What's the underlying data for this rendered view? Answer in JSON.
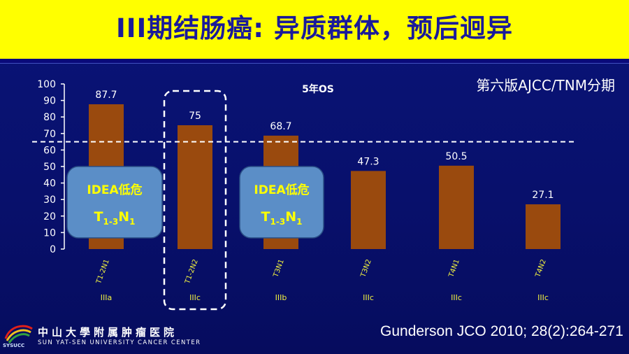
{
  "slide": {
    "title": "III期结肠癌: 异质群体，预后迥异",
    "edition_note": "第六版AJCC/TNM分期",
    "reference": "Gunderson JCO 2010; 28(2):264-271"
  },
  "callouts": [
    {
      "line1": "IDEA低危",
      "base": "T",
      "sub": "1-3",
      "mid": "N",
      "sub2": "1"
    },
    {
      "line1": "IDEA低危",
      "base": "T",
      "sub": "1-3",
      "mid": "N",
      "sub2": "1"
    }
  ],
  "logo": {
    "name_cn": "中山大學附属肿瘤医院",
    "name_en": "SUN YAT-SEN UNIVERSITY CANCER CENTER",
    "abbr": "SYSUCC"
  },
  "colors": {
    "background": "#08106a",
    "header": "#ffff00",
    "bar": "#9a4a0e",
    "callout": "#5b8ec7",
    "title_text": "#1a1a9a"
  },
  "chart_data": {
    "type": "bar",
    "title": "5年OS",
    "categories": [
      "T1-2N1",
      "T1-2N2",
      "T3N1",
      "T3N2",
      "T4N1",
      "T4N2"
    ],
    "stages": [
      "IIIa",
      "IIIc",
      "IIIb",
      "IIIc",
      "IIIc",
      "IIIc"
    ],
    "values": [
      87.7,
      75,
      68.7,
      47.3,
      50.5,
      27.1
    ],
    "value_labels": [
      "87.7",
      "75",
      "68.7",
      "47.3",
      "50.5",
      "27.1"
    ],
    "ylim": [
      0,
      100
    ],
    "yticks": [
      0,
      10,
      20,
      30,
      40,
      50,
      60,
      70,
      80,
      90,
      100
    ],
    "reference_line": 65,
    "highlighted_category": "T1-2N2",
    "grid": false
  }
}
